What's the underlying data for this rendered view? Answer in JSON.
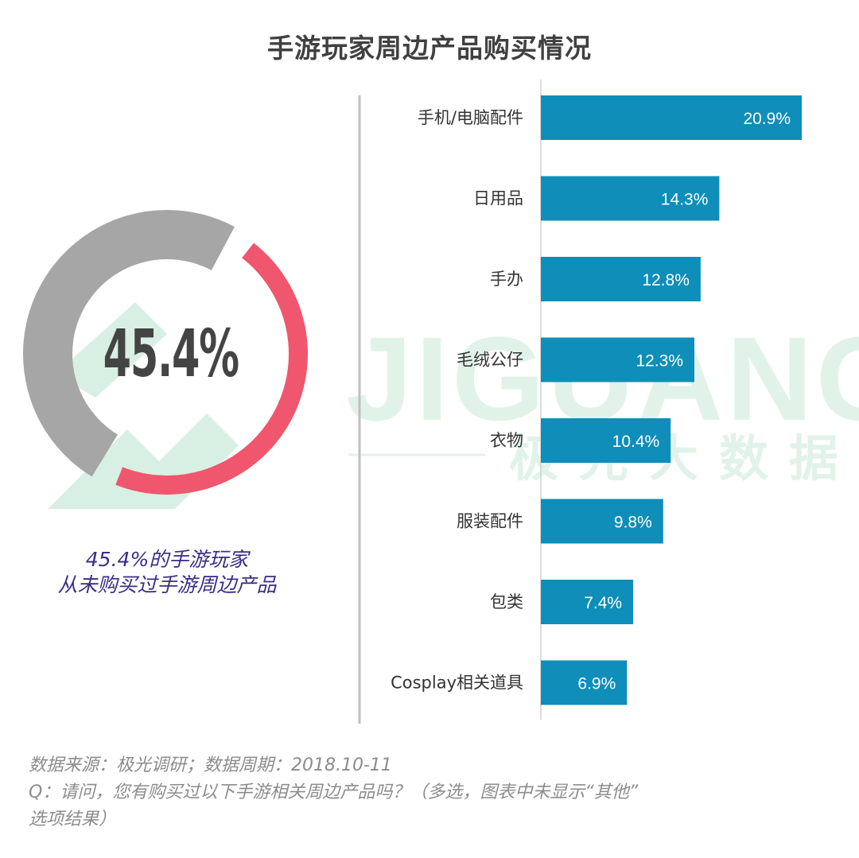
{
  "title": "手游玩家周边产品购买情况",
  "donut": {
    "value_percent": 45.4,
    "center_label": "45.4%",
    "caption_line1": "45.4%的手游玩家",
    "caption_line2": "从未购买过手游周边产品",
    "colors": {
      "highlight": "#f0566d",
      "remainder": "#a6a6a6"
    }
  },
  "watermark": {
    "brand": "JIGUANG",
    "subtitle": "极光大数据",
    "color": "#c9ead8"
  },
  "chart_data": {
    "type": "bar",
    "orientation": "horizontal",
    "categories": [
      "手机/电脑配件",
      "日用品",
      "手办",
      "毛绒公仔",
      "衣物",
      "服装配件",
      "包类",
      "Cosplay相关道具"
    ],
    "values": [
      20.9,
      14.3,
      12.8,
      12.3,
      10.4,
      9.8,
      7.4,
      6.9
    ],
    "value_labels": [
      "20.9%",
      "14.3%",
      "12.8%",
      "12.3%",
      "10.4%",
      "9.8%",
      "7.4%",
      "6.9%"
    ],
    "xlim": [
      0,
      21
    ],
    "bar_color": "#0e8eb8",
    "grid": false
  },
  "source": {
    "line1": "数据来源：极光调研；数据周期：2018.10-11",
    "line2": "Q：请问，您有购买过以下手游相关周边产品吗？（多选，图表中未显示“其他”",
    "line3": "选项结果）"
  }
}
